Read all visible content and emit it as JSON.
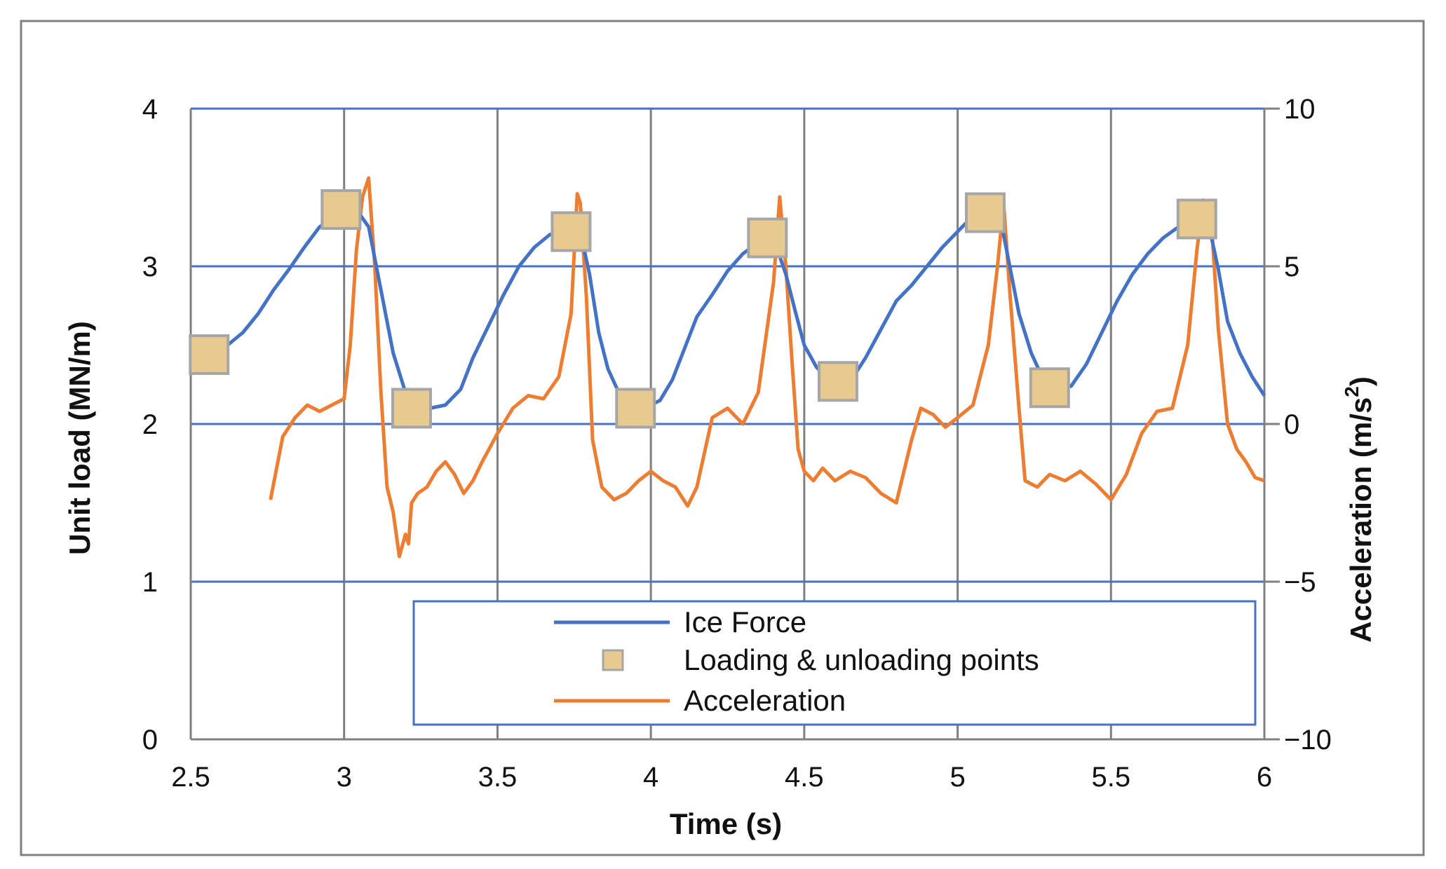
{
  "chart_data": {
    "type": "line",
    "title": "",
    "xlabel": "Time (s)",
    "ylabel": "Unit load  (MN/m)",
    "y2label": "Acceleration (m/s",
    "y2label_sup": "2",
    "y2label_end": ")",
    "xlim": [
      2.5,
      6
    ],
    "ylim": [
      0,
      4
    ],
    "y2lim": [
      -10,
      10
    ],
    "x_ticks": [
      "2.5",
      "3",
      "3.5",
      "4",
      "4.5",
      "5",
      "5.5",
      "6"
    ],
    "y_ticks": [
      "0",
      "1",
      "2",
      "3",
      "4"
    ],
    "y2_ticks": [
      "−10",
      "−5",
      "0",
      "5",
      "10"
    ],
    "x_tick_values": [
      2.5,
      3,
      3.5,
      4,
      4.5,
      5,
      5.5,
      6
    ],
    "y_tick_values": [
      0,
      1,
      2,
      3,
      4
    ],
    "y2_tick_values": [
      -10,
      -5,
      0,
      5,
      10
    ],
    "grid": true,
    "legend_position": "bottom-right",
    "colors": {
      "ice_force": "#4472C4",
      "acceleration": "#ED7D31",
      "marker_fill": "#E8C990",
      "marker_edge": "#A6A6A6",
      "horizontal_grid": "#4472C4",
      "vertical_grid": "#808080"
    },
    "series": [
      {
        "name": "Ice Force",
        "axis": "left",
        "x": [
          2.57,
          2.62,
          2.67,
          2.72,
          2.77,
          2.82,
          2.87,
          2.92,
          2.97,
          3.0,
          3.04,
          3.08,
          3.12,
          3.16,
          3.2,
          3.24,
          3.28,
          3.33,
          3.38,
          3.42,
          3.47,
          3.52,
          3.57,
          3.62,
          3.67,
          3.71,
          3.74,
          3.77,
          3.8,
          3.83,
          3.86,
          3.9,
          3.93,
          3.96,
          4.0,
          4.03,
          4.07,
          4.11,
          4.15,
          4.2,
          4.25,
          4.3,
          4.35,
          4.38,
          4.41,
          4.44,
          4.47,
          4.5,
          4.54,
          4.58,
          4.62,
          4.66,
          4.7,
          4.75,
          4.8,
          4.85,
          4.9,
          4.95,
          5.0,
          5.04,
          5.08,
          5.11,
          5.14,
          5.17,
          5.2,
          5.24,
          5.28,
          5.32,
          5.37,
          5.42,
          5.47,
          5.52,
          5.57,
          5.62,
          5.67,
          5.72,
          5.76,
          5.79,
          5.82,
          5.85,
          5.88,
          5.92,
          5.96,
          6.0
        ],
        "values": [
          2.45,
          2.5,
          2.58,
          2.7,
          2.85,
          2.98,
          3.12,
          3.25,
          3.32,
          3.36,
          3.36,
          3.25,
          2.85,
          2.45,
          2.2,
          2.12,
          2.1,
          2.12,
          2.22,
          2.42,
          2.62,
          2.82,
          3.0,
          3.12,
          3.2,
          3.23,
          3.24,
          3.22,
          2.95,
          2.58,
          2.35,
          2.18,
          2.13,
          2.11,
          2.12,
          2.15,
          2.28,
          2.48,
          2.68,
          2.82,
          2.97,
          3.08,
          3.15,
          3.18,
          3.12,
          2.95,
          2.72,
          2.5,
          2.36,
          2.28,
          2.27,
          2.3,
          2.42,
          2.6,
          2.78,
          2.88,
          3.0,
          3.12,
          3.22,
          3.3,
          3.33,
          3.34,
          3.3,
          3.0,
          2.7,
          2.45,
          2.28,
          2.22,
          2.24,
          2.38,
          2.58,
          2.78,
          2.95,
          3.08,
          3.18,
          3.25,
          3.28,
          3.3,
          3.25,
          2.98,
          2.65,
          2.45,
          2.3,
          2.18
        ]
      },
      {
        "name": "Loading & unloading points",
        "axis": "left",
        "x": [
          2.56,
          2.99,
          3.22,
          3.74,
          3.95,
          4.38,
          4.61,
          5.09,
          5.3,
          5.78
        ],
        "values": [
          2.44,
          3.36,
          2.1,
          3.22,
          2.1,
          3.18,
          2.27,
          3.34,
          2.23,
          3.3
        ]
      },
      {
        "name": "Acceleration",
        "axis": "right",
        "x": [
          2.76,
          2.8,
          2.84,
          2.88,
          2.92,
          2.96,
          3.0,
          3.02,
          3.04,
          3.06,
          3.08,
          3.1,
          3.12,
          3.14,
          3.16,
          3.18,
          3.2,
          3.21,
          3.22,
          3.24,
          3.27,
          3.3,
          3.33,
          3.36,
          3.39,
          3.42,
          3.45,
          3.5,
          3.55,
          3.6,
          3.65,
          3.7,
          3.74,
          3.76,
          3.77,
          3.79,
          3.81,
          3.84,
          3.88,
          3.92,
          3.96,
          4.0,
          4.04,
          4.08,
          4.12,
          4.15,
          4.2,
          4.25,
          4.3,
          4.35,
          4.4,
          4.42,
          4.44,
          4.46,
          4.48,
          4.5,
          4.53,
          4.56,
          4.6,
          4.65,
          4.7,
          4.75,
          4.8,
          4.85,
          4.88,
          4.92,
          4.96,
          5.0,
          5.05,
          5.1,
          5.13,
          5.15,
          5.17,
          5.2,
          5.22,
          5.26,
          5.3,
          5.35,
          5.4,
          5.45,
          5.5,
          5.55,
          5.6,
          5.65,
          5.7,
          5.75,
          5.78,
          5.8,
          5.83,
          5.85,
          5.88,
          5.91,
          5.94,
          5.97,
          6.0
        ],
        "values": [
          -2.4,
          -0.4,
          0.2,
          0.6,
          0.4,
          0.6,
          0.8,
          2.5,
          5.5,
          7.2,
          7.8,
          5.0,
          1.0,
          -2.0,
          -2.8,
          -4.2,
          -3.5,
          -3.8,
          -2.5,
          -2.2,
          -2.0,
          -1.5,
          -1.2,
          -1.6,
          -2.2,
          -1.8,
          -1.2,
          -0.3,
          0.5,
          0.9,
          0.8,
          1.5,
          3.5,
          7.3,
          7.0,
          4.0,
          -0.5,
          -2.0,
          -2.4,
          -2.2,
          -1.8,
          -1.5,
          -1.8,
          -2.0,
          -2.6,
          -2.0,
          0.2,
          0.5,
          0.0,
          1.0,
          4.5,
          7.2,
          5.0,
          2.0,
          -0.8,
          -1.5,
          -1.8,
          -1.4,
          -1.8,
          -1.5,
          -1.7,
          -2.2,
          -2.5,
          -0.5,
          0.5,
          0.3,
          -0.1,
          0.2,
          0.6,
          2.5,
          5.0,
          7.0,
          4.2,
          0.5,
          -1.8,
          -2.0,
          -1.6,
          -1.8,
          -1.5,
          -1.9,
          -2.4,
          -1.6,
          -0.3,
          0.4,
          0.5,
          2.5,
          5.5,
          7.1,
          6.0,
          3.0,
          0.0,
          -0.8,
          -1.2,
          -1.7,
          -1.8
        ]
      }
    ]
  }
}
